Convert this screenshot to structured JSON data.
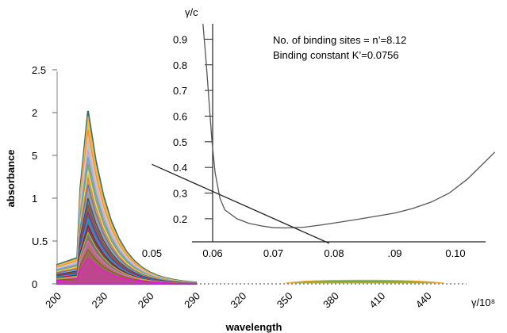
{
  "chart_data": [
    {
      "type": "line",
      "title": "",
      "xlabel": "wavelength",
      "ylabel": "absorbance",
      "xlim": [
        200,
        450
      ],
      "ylim": [
        0,
        2.5
      ],
      "x_tick_labels": [
        "200",
        "230",
        "260",
        "290",
        "320",
        "350",
        "380",
        "410",
        "440"
      ],
      "y_tick_labels": [
        "0",
        "U.5",
        "1",
        "5",
        "2",
        "2.5"
      ],
      "spectrum_peak_x": 220,
      "spectrum_edge_x": 215,
      "spectrum_end_x": 290,
      "series_count": 22,
      "peak_values": [
        2.02,
        1.96,
        1.88,
        1.8,
        1.72,
        1.64,
        1.56,
        1.48,
        1.4,
        1.32,
        1.24,
        1.16,
        1.08,
        1.0,
        0.92,
        0.84,
        0.76,
        0.68,
        0.6,
        0.5,
        0.4,
        0.3
      ],
      "series_colors": [
        "#2e6e70",
        "#f2a93b",
        "#e8c23a",
        "#f28c28",
        "#ffb6c1",
        "#9bd4e6",
        "#c8a2c8",
        "#5b9bd5",
        "#70ad47",
        "#ffd966",
        "#ed7d31",
        "#4472c4",
        "#a5a5a5",
        "#264478",
        "#9e480e",
        "#7030a0",
        "#00b0f0",
        "#c00000",
        "#92d050",
        "#ff66cc",
        "#7f6000",
        "#ff00ff"
      ],
      "legend": "none",
      "grid": false
    },
    {
      "type": "line",
      "title": "",
      "xlabel": "γ/10⁸",
      "ylabel": "γ/c",
      "xlim": [
        0.05,
        0.107
      ],
      "ylim": [
        0.11,
        0.96
      ],
      "x_tick_labels": [
        "0.05",
        "0.06",
        "0.07",
        "0.08",
        ".09",
        "0.10"
      ],
      "y_tick_labels": [
        "0.9",
        "0.8",
        "0.7",
        "0.6",
        "0.5",
        "0.4",
        "0.3",
        "0.2"
      ],
      "annotations": [
        "No. of binding sites = n’=8.12",
        "Binding constant K’=0.0756"
      ],
      "series": [
        {
          "x": [
            0.0584,
            0.0589,
            0.0594,
            0.0599,
            0.0604,
            0.0612,
            0.062,
            0.064,
            0.066,
            0.068,
            0.07,
            0.072,
            0.075,
            0.078,
            0.081,
            0.084,
            0.087,
            0.09,
            0.093,
            0.096,
            0.099,
            0.102,
            0.105,
            0.1065
          ],
          "y": [
            0.96,
            0.82,
            0.66,
            0.5,
            0.38,
            0.28,
            0.235,
            0.2,
            0.182,
            0.172,
            0.165,
            0.164,
            0.167,
            0.176,
            0.187,
            0.198,
            0.21,
            0.222,
            0.24,
            0.265,
            0.3,
            0.355,
            0.425,
            0.46
          ]
        },
        {
          "x": [
            0.05,
            0.0792
          ],
          "y": [
            0.412,
            0.104
          ]
        }
      ],
      "legend": "none",
      "grid": false
    }
  ]
}
